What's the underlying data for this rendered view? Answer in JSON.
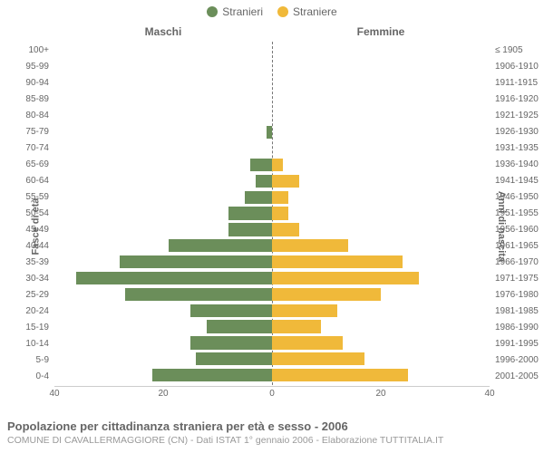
{
  "legend": {
    "male_label": "Stranieri",
    "female_label": "Straniere",
    "male_color": "#6b8e5a",
    "female_color": "#f0b93a"
  },
  "headers": {
    "left": "Maschi",
    "right": "Femmine"
  },
  "axis_titles": {
    "left": "Fasce di età",
    "right": "Anni di nascita"
  },
  "chart": {
    "type": "population-pyramid",
    "xmax": 40,
    "xticks": [
      40,
      20,
      0,
      20,
      40
    ],
    "background_color": "#ffffff",
    "axis_color": "#cccccc",
    "text_color": "#666666",
    "centerline_color": "#777777",
    "bar_height_ratio": 0.8,
    "rows": [
      {
        "age": "100+",
        "birth": "≤ 1905",
        "male": 0,
        "female": 0
      },
      {
        "age": "95-99",
        "birth": "1906-1910",
        "male": 0,
        "female": 0
      },
      {
        "age": "90-94",
        "birth": "1911-1915",
        "male": 0,
        "female": 0
      },
      {
        "age": "85-89",
        "birth": "1916-1920",
        "male": 0,
        "female": 0
      },
      {
        "age": "80-84",
        "birth": "1921-1925",
        "male": 0,
        "female": 0
      },
      {
        "age": "75-79",
        "birth": "1926-1930",
        "male": 1,
        "female": 0
      },
      {
        "age": "70-74",
        "birth": "1931-1935",
        "male": 0,
        "female": 0
      },
      {
        "age": "65-69",
        "birth": "1936-1940",
        "male": 4,
        "female": 2
      },
      {
        "age": "60-64",
        "birth": "1941-1945",
        "male": 3,
        "female": 5
      },
      {
        "age": "55-59",
        "birth": "1946-1950",
        "male": 5,
        "female": 3
      },
      {
        "age": "50-54",
        "birth": "1951-1955",
        "male": 8,
        "female": 3
      },
      {
        "age": "45-49",
        "birth": "1956-1960",
        "male": 8,
        "female": 5
      },
      {
        "age": "40-44",
        "birth": "1961-1965",
        "male": 19,
        "female": 14
      },
      {
        "age": "35-39",
        "birth": "1966-1970",
        "male": 28,
        "female": 24
      },
      {
        "age": "30-34",
        "birth": "1971-1975",
        "male": 36,
        "female": 27
      },
      {
        "age": "25-29",
        "birth": "1976-1980",
        "male": 27,
        "female": 20
      },
      {
        "age": "20-24",
        "birth": "1981-1985",
        "male": 15,
        "female": 12
      },
      {
        "age": "15-19",
        "birth": "1986-1990",
        "male": 12,
        "female": 9
      },
      {
        "age": "10-14",
        "birth": "1991-1995",
        "male": 15,
        "female": 13
      },
      {
        "age": "5-9",
        "birth": "1996-2000",
        "male": 14,
        "female": 17
      },
      {
        "age": "0-4",
        "birth": "2001-2005",
        "male": 22,
        "female": 25
      }
    ]
  },
  "footer": {
    "title": "Popolazione per cittadinanza straniera per età e sesso - 2006",
    "subtitle": "COMUNE DI CAVALLERMAGGIORE (CN) - Dati ISTAT 1° gennaio 2006 - Elaborazione TUTTITALIA.IT"
  }
}
